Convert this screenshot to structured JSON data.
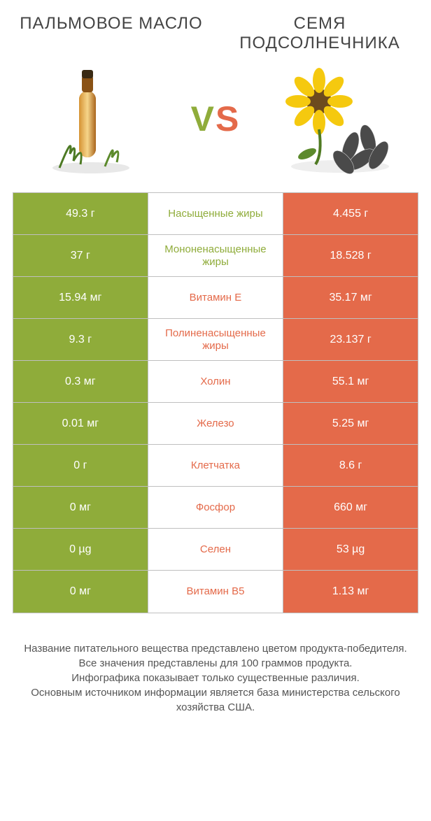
{
  "header": {
    "left_title": "ПАЛЬМОВОЕ МАСЛО",
    "right_title": "СЕМЯ ПОДСОЛНЕЧНИКА",
    "vs_v": "V",
    "vs_s": "S"
  },
  "colors": {
    "left": "#8fac3a",
    "right": "#e46a4a",
    "border": "#bfbfbf",
    "text": "#333333",
    "bg": "#ffffff"
  },
  "icons": {
    "left": "oil-bottle-with-herb",
    "right": "sunflower-with-seeds"
  },
  "table": {
    "rows": [
      {
        "left": "49.3 г",
        "label": "Насыщенные жиры",
        "winner": "left",
        "right": "4.455 г"
      },
      {
        "left": "37 г",
        "label": "Мононенасыщенные жиры",
        "winner": "left",
        "right": "18.528 г"
      },
      {
        "left": "15.94 мг",
        "label": "Витамин E",
        "winner": "right",
        "right": "35.17 мг"
      },
      {
        "left": "9.3 г",
        "label": "Полиненасыщенные жиры",
        "winner": "right",
        "right": "23.137 г"
      },
      {
        "left": "0.3 мг",
        "label": "Холин",
        "winner": "right",
        "right": "55.1 мг"
      },
      {
        "left": "0.01 мг",
        "label": "Железо",
        "winner": "right",
        "right": "5.25 мг"
      },
      {
        "left": "0 г",
        "label": "Клетчатка",
        "winner": "right",
        "right": "8.6 г"
      },
      {
        "left": "0 мг",
        "label": "Фосфор",
        "winner": "right",
        "right": "660 мг"
      },
      {
        "left": "0 µg",
        "label": "Селен",
        "winner": "right",
        "right": "53 µg"
      },
      {
        "left": "0 мг",
        "label": "Витамин B5",
        "winner": "right",
        "right": "1.13 мг"
      }
    ]
  },
  "footer": {
    "line1": "Название питательного вещества представлено цветом продукта-победителя.",
    "line2": "Все значения представлены для 100 граммов продукта.",
    "line3": "Инфографика показывает только существенные различия.",
    "line4": "Основным источником информации является база министерства сельского хозяйства США."
  }
}
